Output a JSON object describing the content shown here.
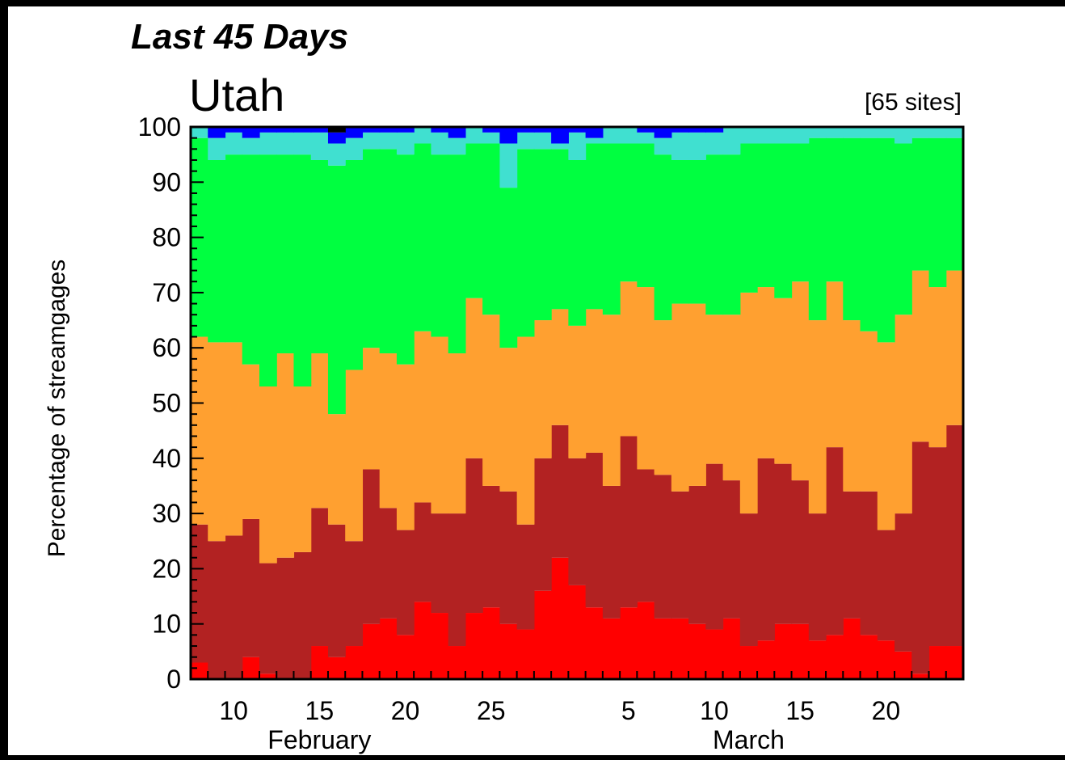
{
  "chart_data": {
    "type": "area",
    "title": "Last 45 Days",
    "subtitle": "Utah",
    "site_count_label": "[65 sites]",
    "ylabel": "Percentage of streamgages",
    "xlabel": "",
    "ylim": [
      0,
      100
    ],
    "y_ticks": [
      "0",
      "10",
      "20",
      "30",
      "40",
      "50",
      "60",
      "70",
      "80",
      "90",
      "100"
    ],
    "x_tick_labels": [
      {
        "day": 10,
        "label": "10"
      },
      {
        "day": 15,
        "label": "15"
      },
      {
        "day": 20,
        "label": "20"
      },
      {
        "day": 25,
        "label": "25"
      },
      {
        "day": 33,
        "label": "5"
      },
      {
        "day": 38,
        "label": "10"
      },
      {
        "day": 43,
        "label": "15"
      },
      {
        "day": 48,
        "label": "20"
      }
    ],
    "month_labels": [
      {
        "day": 15,
        "label": "February"
      },
      {
        "day": 40,
        "label": "March"
      }
    ],
    "days": [
      8,
      9,
      10,
      11,
      12,
      13,
      14,
      15,
      16,
      17,
      18,
      19,
      20,
      21,
      22,
      23,
      24,
      25,
      26,
      27,
      28,
      29,
      30,
      31,
      32,
      33,
      34,
      35,
      36,
      37,
      38,
      39,
      40,
      41,
      42,
      43,
      44,
      45,
      46,
      47,
      48,
      49,
      50,
      51,
      52
    ],
    "grid": false,
    "series": [
      {
        "color": "#ff0000",
        "values": [
          3,
          0,
          0,
          4,
          1,
          0,
          0,
          6,
          4,
          6,
          10,
          11,
          8,
          14,
          12,
          6,
          12,
          13,
          10,
          9,
          16,
          22,
          17,
          13,
          11,
          13,
          14,
          11,
          11,
          10,
          9,
          11,
          6,
          7,
          10,
          10,
          7,
          8,
          11,
          8,
          7,
          5,
          1,
          6,
          6
        ]
      },
      {
        "color": "#b22222",
        "values": [
          28,
          25,
          26,
          29,
          21,
          22,
          23,
          31,
          28,
          25,
          38,
          31,
          27,
          32,
          30,
          30,
          40,
          35,
          34,
          28,
          40,
          46,
          40,
          41,
          35,
          44,
          38,
          37,
          34,
          35,
          39,
          36,
          30,
          40,
          39,
          36,
          30,
          42,
          34,
          34,
          27,
          30,
          43,
          42,
          46
        ]
      },
      {
        "color": "#ffa030",
        "values": [
          62,
          61,
          61,
          57,
          53,
          59,
          53,
          59,
          48,
          56,
          60,
          59,
          57,
          63,
          62,
          59,
          69,
          66,
          60,
          62,
          65,
          67,
          64,
          67,
          66,
          72,
          71,
          65,
          68,
          68,
          66,
          66,
          70,
          71,
          69,
          72,
          65,
          72,
          65,
          63,
          61,
          66,
          74,
          71,
          74
        ]
      },
      {
        "color": "#00ff40",
        "values": [
          98,
          94,
          95,
          95,
          95,
          95,
          95,
          94,
          93,
          94,
          96,
          96,
          95,
          97,
          95,
          95,
          97,
          97,
          89,
          96,
          96,
          96,
          94,
          97,
          97,
          97,
          97,
          95,
          94,
          94,
          95,
          95,
          97,
          97,
          97,
          97,
          98,
          98,
          98,
          98,
          98,
          97,
          98,
          98,
          98
        ]
      },
      {
        "color": "#40e0d0",
        "values": [
          100,
          98,
          99,
          98,
          99,
          99,
          99,
          99,
          97,
          98,
          99,
          99,
          99,
          100,
          99,
          98,
          100,
          99,
          97,
          99,
          99,
          97,
          99,
          98,
          100,
          100,
          99,
          98,
          99,
          99,
          99,
          100,
          100,
          100,
          100,
          100,
          100,
          100,
          100,
          100,
          100,
          100,
          100,
          100,
          100
        ]
      },
      {
        "color": "#0000ff",
        "values": [
          100,
          100,
          100,
          100,
          100,
          100,
          100,
          100,
          99,
          100,
          100,
          100,
          100,
          100,
          100,
          100,
          100,
          100,
          100,
          100,
          100,
          100,
          100,
          100,
          100,
          100,
          100,
          100,
          100,
          100,
          100,
          100,
          100,
          100,
          100,
          100,
          100,
          100,
          100,
          100,
          100,
          100,
          100,
          100,
          100
        ]
      },
      {
        "color": "#000000",
        "values": [
          100,
          100,
          100,
          100,
          100,
          100,
          100,
          100,
          100,
          100,
          100,
          100,
          100,
          100,
          100,
          100,
          100,
          100,
          100,
          100,
          100,
          100,
          100,
          100,
          100,
          100,
          100,
          100,
          100,
          100,
          100,
          100,
          100,
          100,
          100,
          100,
          100,
          100,
          100,
          100,
          100,
          100,
          100,
          100,
          100
        ]
      }
    ]
  }
}
